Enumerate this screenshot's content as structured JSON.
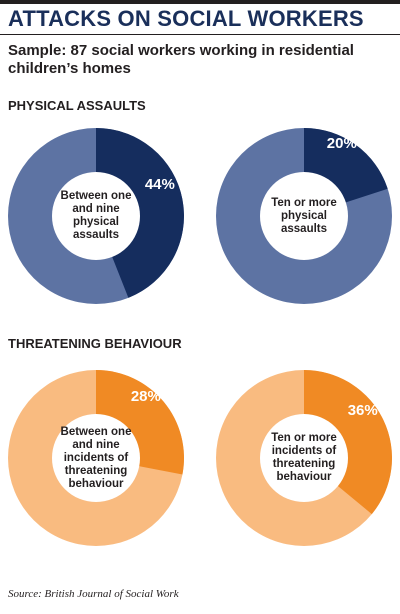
{
  "title": "ATTACKS ON SOCIAL WORKERS",
  "subtitle": "Sample: 87 social workers working in residential children’s homes",
  "sections": [
    {
      "title": "PHYSICAL ASSAULTS"
    },
    {
      "title": "THREATENING BEHAVIOUR"
    }
  ],
  "source": "Source: British Journal of Social Work",
  "colors": {
    "physical_highlight": "#152d5e",
    "physical_rest": "#5d73a3",
    "threat_highlight": "#f08a24",
    "threat_rest": "#f9bb80"
  },
  "chart_data": [
    {
      "type": "pie",
      "section": "PHYSICAL ASSAULTS",
      "label": "Between one and nine physical assaults",
      "value": 44,
      "display": "44%"
    },
    {
      "type": "pie",
      "section": "PHYSICAL ASSAULTS",
      "label": "Ten or more physical assaults",
      "value": 20,
      "display": "20%"
    },
    {
      "type": "pie",
      "section": "THREATENING BEHAVIOUR",
      "label": "Between one and nine incidents of threatening behaviour",
      "value": 28,
      "display": "28%"
    },
    {
      "type": "pie",
      "section": "THREATENING BEHAVIOUR",
      "label": "Ten or more incidents of threatening behaviour",
      "value": 36,
      "display": "36%"
    }
  ]
}
